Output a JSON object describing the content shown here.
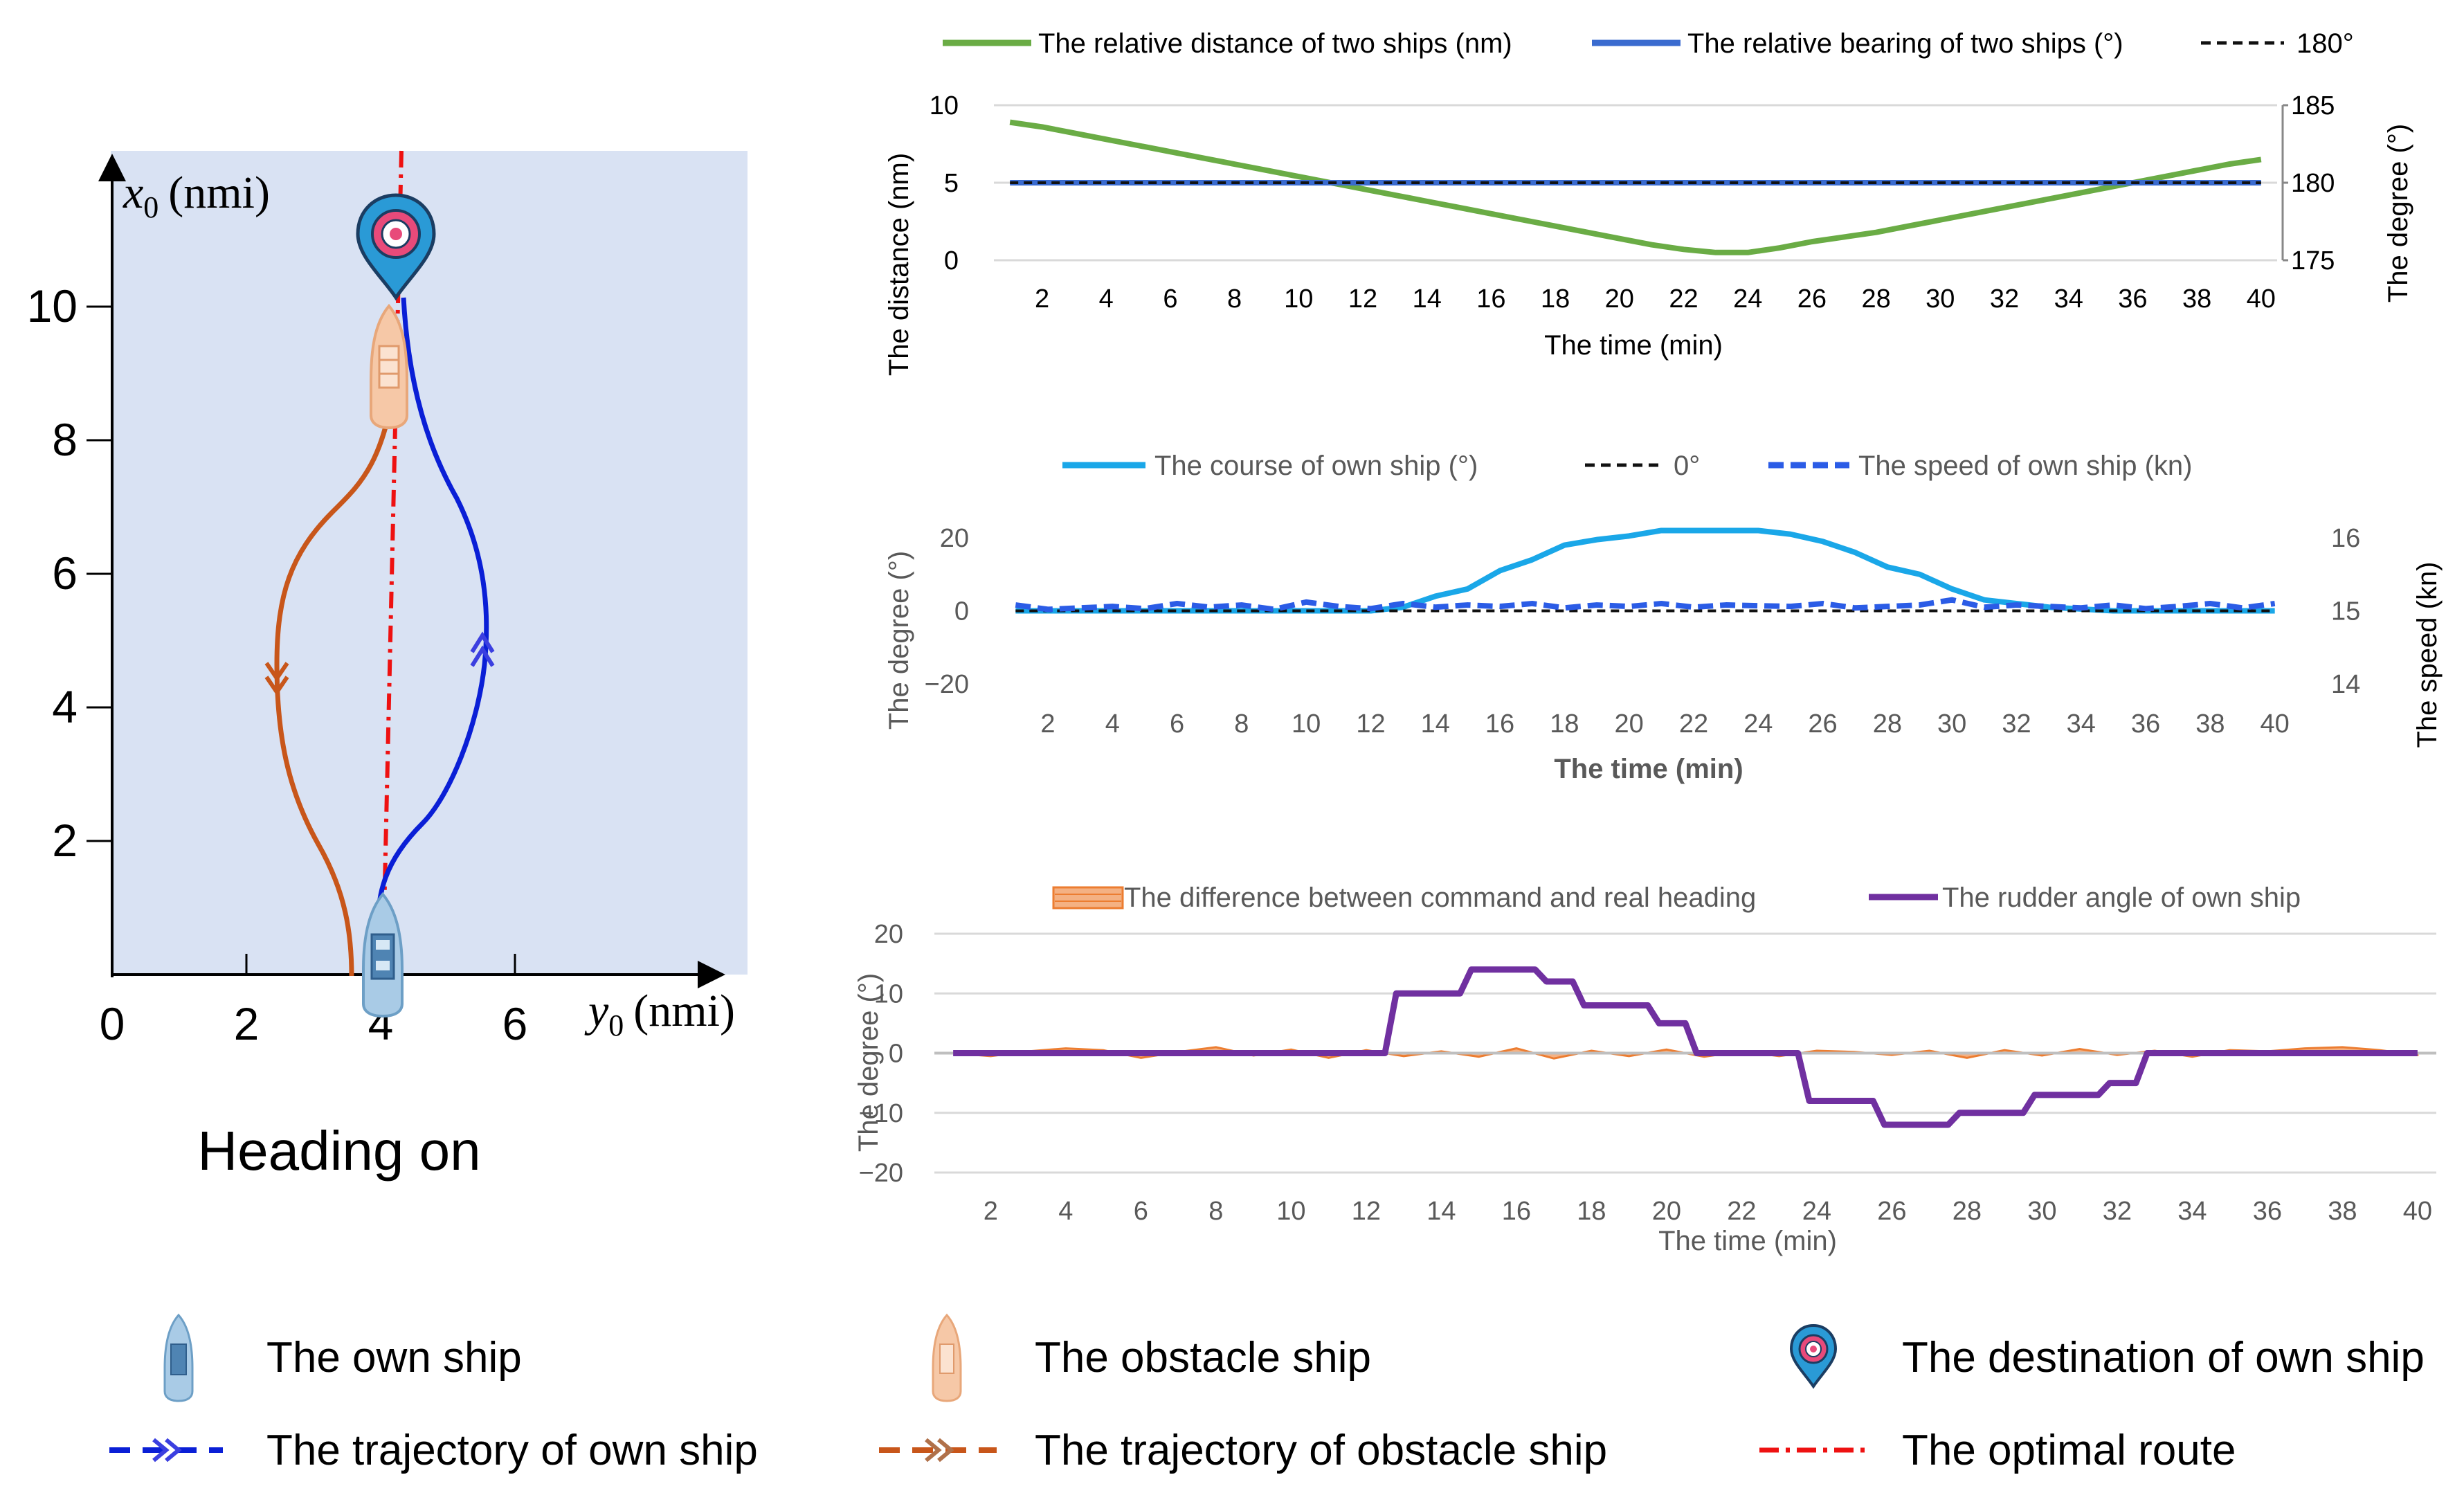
{
  "traj": {
    "caption": "Heading on",
    "xaxis_var": "y",
    "xaxis_sub": "0",
    "xaxis_unit": "(nmi)",
    "yaxis_var": "x",
    "yaxis_sub": "0",
    "yaxis_unit": "(nmi)",
    "xticks": [
      "0",
      "2",
      "4",
      "6"
    ],
    "yticks": [
      "2",
      "4",
      "6",
      "8",
      "10"
    ],
    "colors": {
      "background": "#d9e2f3",
      "own": "#0a1fd6",
      "obstacle": "#c8561a",
      "route": "#ee1111"
    }
  },
  "legend": {
    "own_ship": "The own ship",
    "obstacle_ship": "The obstacle ship",
    "destination": "The destination of own ship",
    "own_traj": "The trajectory of own ship",
    "obs_traj": "The trajectory of obstacle ship",
    "optimal_route": "The optimal route"
  },
  "chart_data": [
    {
      "type": "line",
      "id": "distance-bearing",
      "xlabel": "The time (min)",
      "ylabel": "The distance (nm)",
      "y2label": "The degree (°)",
      "x": [
        1,
        2,
        3,
        4,
        5,
        6,
        7,
        8,
        9,
        10,
        11,
        12,
        13,
        14,
        15,
        16,
        17,
        18,
        19,
        20,
        21,
        22,
        23,
        24,
        25,
        26,
        27,
        28,
        29,
        30,
        31,
        32,
        33,
        34,
        35,
        36,
        37,
        38,
        39,
        40
      ],
      "xticks": [
        "2",
        "4",
        "6",
        "8",
        "10",
        "12",
        "14",
        "16",
        "18",
        "20",
        "22",
        "24",
        "26",
        "28",
        "30",
        "32",
        "34",
        "36",
        "38",
        "40"
      ],
      "yticks": [
        "0",
        "5",
        "10"
      ],
      "y2ticks": [
        "175",
        "180",
        "185"
      ],
      "ylim": [
        0,
        10
      ],
      "y2lim": [
        175,
        185
      ],
      "series": [
        {
          "name": "The relative distance of two ships (nm)",
          "axis": "left",
          "color": "#6aac45",
          "style": "solid",
          "values": [
            8.9,
            8.6,
            8.2,
            7.8,
            7.4,
            7.0,
            6.6,
            6.2,
            5.8,
            5.4,
            5.0,
            4.6,
            4.2,
            3.8,
            3.4,
            3.0,
            2.6,
            2.2,
            1.8,
            1.4,
            1.0,
            0.7,
            0.5,
            0.5,
            0.8,
            1.2,
            1.5,
            1.8,
            2.2,
            2.6,
            3.0,
            3.4,
            3.8,
            4.2,
            4.6,
            5.0,
            5.4,
            5.8,
            6.2,
            6.5
          ]
        },
        {
          "name": "The relative bearing of two ships (°)",
          "axis": "right",
          "color": "#3a6bcf",
          "style": "solid",
          "values": [
            180,
            180,
            180,
            180,
            180,
            180,
            180,
            180,
            180,
            180,
            180,
            180,
            180,
            180,
            180,
            180,
            180,
            180,
            180,
            180,
            180,
            180,
            180,
            180,
            180,
            180,
            180,
            180,
            180,
            180,
            180,
            180,
            180,
            180,
            180,
            180,
            180,
            180,
            180,
            180
          ]
        },
        {
          "name": "180°",
          "axis": "right",
          "color": "#111111",
          "style": "dash",
          "values": [
            180,
            180,
            180,
            180,
            180,
            180,
            180,
            180,
            180,
            180,
            180,
            180,
            180,
            180,
            180,
            180,
            180,
            180,
            180,
            180,
            180,
            180,
            180,
            180,
            180,
            180,
            180,
            180,
            180,
            180,
            180,
            180,
            180,
            180,
            180,
            180,
            180,
            180,
            180,
            180
          ]
        }
      ]
    },
    {
      "type": "line",
      "id": "course-speed",
      "xlabel": "The time (min)",
      "ylabel": "The degree (°)",
      "y2label": "The speed (kn)",
      "x": [
        1,
        2,
        3,
        4,
        5,
        6,
        7,
        8,
        9,
        10,
        11,
        12,
        13,
        14,
        15,
        16,
        17,
        18,
        19,
        20,
        21,
        22,
        23,
        24,
        25,
        26,
        27,
        28,
        29,
        30,
        31,
        32,
        33,
        34,
        35,
        36,
        37,
        38,
        39,
        40
      ],
      "xticks": [
        "2",
        "4",
        "6",
        "8",
        "10",
        "12",
        "14",
        "16",
        "18",
        "20",
        "22",
        "24",
        "26",
        "28",
        "30",
        "32",
        "34",
        "36",
        "38",
        "40"
      ],
      "yticks": [
        "−20",
        "0",
        "20"
      ],
      "y2ticks": [
        "14",
        "15",
        "16"
      ],
      "ylim": [
        -20,
        20
      ],
      "y2lim": [
        14,
        16
      ],
      "series": [
        {
          "name": "The course of own ship (°)",
          "axis": "left",
          "color": "#1aa7e8",
          "style": "solid",
          "values": [
            0,
            0,
            0,
            0,
            0,
            0,
            0,
            0,
            0,
            0,
            0,
            0,
            1,
            4,
            6,
            11,
            14,
            18,
            19.5,
            20.5,
            22,
            22,
            22,
            22,
            21,
            19,
            16,
            12,
            10,
            6,
            3,
            2,
            1,
            0.5,
            0,
            0,
            0,
            0,
            0,
            0
          ]
        },
        {
          "name": "0°",
          "axis": "left",
          "color": "#111111",
          "style": "dash",
          "values": [
            0,
            0,
            0,
            0,
            0,
            0,
            0,
            0,
            0,
            0,
            0,
            0,
            0,
            0,
            0,
            0,
            0,
            0,
            0,
            0,
            0,
            0,
            0,
            0,
            0,
            0,
            0,
            0,
            0,
            0,
            0,
            0,
            0,
            0,
            0,
            0,
            0,
            0,
            0,
            0
          ]
        },
        {
          "name": "The speed of own ship (kn)",
          "axis": "right",
          "color": "#2b5ce6",
          "style": "dash",
          "values": [
            15.08,
            15.02,
            15.04,
            15.06,
            15.03,
            15.1,
            15.05,
            15.08,
            15.02,
            15.12,
            15.06,
            15.03,
            15.1,
            15.05,
            15.08,
            15.06,
            15.1,
            15.04,
            15.08,
            15.06,
            15.1,
            15.05,
            15.08,
            15.07,
            15.06,
            15.1,
            15.04,
            15.06,
            15.08,
            15.15,
            15.05,
            15.08,
            15.06,
            15.04,
            15.08,
            15.03,
            15.06,
            15.1,
            15.04,
            15.1
          ]
        }
      ]
    },
    {
      "type": "line",
      "id": "heading-rudder",
      "xlabel": "The time (min)",
      "ylabel": "The degree (°)",
      "x": [
        1,
        2,
        3,
        4,
        5,
        6,
        7,
        8,
        9,
        10,
        11,
        12,
        13,
        14,
        15,
        16,
        17,
        18,
        19,
        20,
        21,
        22,
        23,
        24,
        25,
        26,
        27,
        28,
        29,
        30,
        31,
        32,
        33,
        34,
        35,
        36,
        37,
        38,
        39,
        40
      ],
      "xticks": [
        "2",
        "4",
        "6",
        "8",
        "10",
        "12",
        "14",
        "16",
        "18",
        "20",
        "22",
        "24",
        "26",
        "28",
        "30",
        "32",
        "34",
        "36",
        "38",
        "40"
      ],
      "yticks": [
        "−20",
        "−10",
        "0",
        "10",
        "20"
      ],
      "ylim": [
        -20,
        20
      ],
      "series": [
        {
          "name": "The difference between command and real heading",
          "color": "#ec7d31",
          "style": "area",
          "values": [
            0,
            -0.5,
            0.3,
            0.8,
            0.5,
            -0.8,
            0.2,
            1.0,
            -0.4,
            0.6,
            -0.8,
            0.5,
            -0.5,
            0.3,
            -0.6,
            0.8,
            -0.9,
            0.4,
            -0.5,
            0.6,
            -0.6,
            0.3,
            -0.5,
            0.4,
            0.2,
            -0.3,
            0.4,
            -0.8,
            0.5,
            -0.4,
            0.7,
            -0.3,
            0.4,
            -0.6,
            0.5,
            0.3,
            0.8,
            1.0,
            0.5,
            -0.3
          ]
        },
        {
          "name": "The rudder angle of own ship",
          "color": "#7030a0",
          "style": "step",
          "values": [
            0,
            0,
            0,
            0,
            0,
            0,
            0,
            0,
            0,
            0,
            0,
            0,
            10,
            10,
            14,
            14,
            12,
            8,
            8,
            5,
            0,
            0,
            0,
            -8,
            -8,
            -12,
            -12,
            -10,
            -10,
            -7,
            -7,
            -5,
            0,
            0,
            0,
            0,
            0,
            0,
            0,
            0
          ]
        }
      ]
    }
  ]
}
